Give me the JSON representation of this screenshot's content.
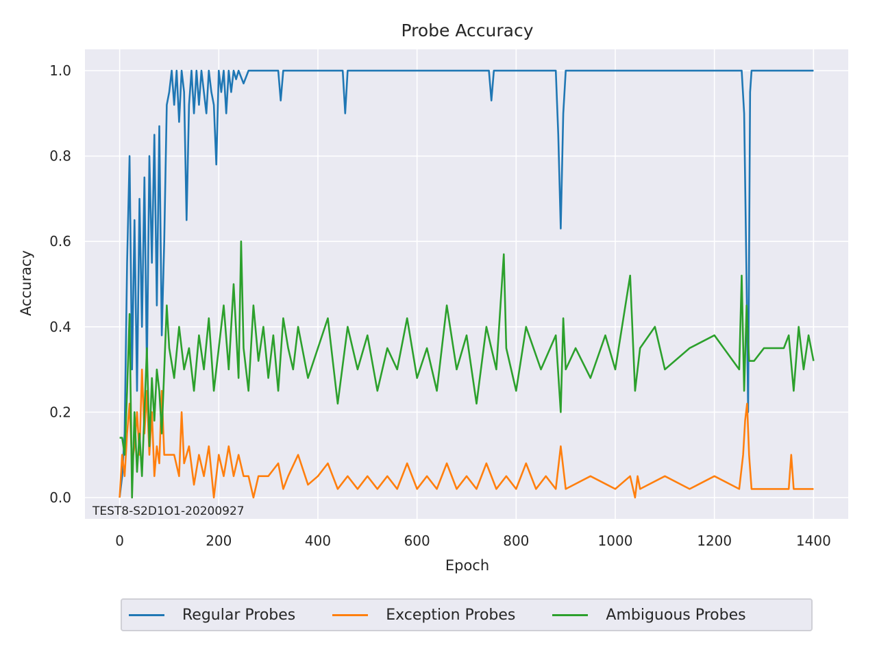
{
  "chart_data": {
    "type": "line",
    "title": "Probe Accuracy",
    "xlabel": "Epoch",
    "ylabel": "Accuracy",
    "annotation": "TEST8-S2D1O1-20200927",
    "xlim": [
      -70,
      1470
    ],
    "ylim": [
      -0.05,
      1.05
    ],
    "xticks": [
      0,
      200,
      400,
      600,
      800,
      1000,
      1200,
      1400
    ],
    "xtick_labels": [
      "0",
      "200",
      "400",
      "600",
      "800",
      "1000",
      "1200",
      "1400"
    ],
    "yticks": [
      0.0,
      0.2,
      0.4,
      0.6,
      0.8,
      1.0
    ],
    "ytick_labels": [
      "0.0",
      "0.2",
      "0.4",
      "0.6",
      "0.8",
      "1.0"
    ],
    "grid": true,
    "legend_position": "bottom-center",
    "series": [
      {
        "name": "Regular Probes",
        "color": "#1f77b4",
        "x": [
          0,
          5,
          10,
          15,
          20,
          25,
          30,
          35,
          40,
          45,
          50,
          55,
          60,
          65,
          70,
          75,
          80,
          85,
          90,
          95,
          100,
          105,
          110,
          115,
          120,
          125,
          130,
          135,
          140,
          145,
          150,
          155,
          160,
          165,
          170,
          175,
          180,
          185,
          190,
          195,
          200,
          205,
          210,
          215,
          220,
          225,
          230,
          235,
          240,
          250,
          260,
          270,
          280,
          300,
          320,
          325,
          330,
          340,
          360,
          400,
          450,
          455,
          460,
          470,
          500,
          600,
          700,
          745,
          750,
          755,
          800,
          880,
          885,
          890,
          895,
          900,
          1000,
          1100,
          1200,
          1255,
          1260,
          1265,
          1268,
          1272,
          1275,
          1280,
          1300,
          1400
        ],
        "y": [
          0,
          0.05,
          0.15,
          0.55,
          0.8,
          0.3,
          0.65,
          0.25,
          0.7,
          0.4,
          0.75,
          0.3,
          0.8,
          0.55,
          0.85,
          0.45,
          0.87,
          0.38,
          0.6,
          0.92,
          0.95,
          1.0,
          0.92,
          1.0,
          0.88,
          1.0,
          0.95,
          0.65,
          0.92,
          1.0,
          0.9,
          1.0,
          0.92,
          1.0,
          0.95,
          0.9,
          1.0,
          0.95,
          0.92,
          0.78,
          1.0,
          0.95,
          1.0,
          0.9,
          1.0,
          0.95,
          1.0,
          0.98,
          1.0,
          0.97,
          1.0,
          1.0,
          1.0,
          1.0,
          1.0,
          0.93,
          1.0,
          1.0,
          1.0,
          1.0,
          1.0,
          0.9,
          1.0,
          1.0,
          1.0,
          1.0,
          1.0,
          1.0,
          0.93,
          1.0,
          1.0,
          1.0,
          0.85,
          0.63,
          0.9,
          1.0,
          1.0,
          1.0,
          1.0,
          1.0,
          0.9,
          0.5,
          0.2,
          0.95,
          1.0,
          1.0,
          1.0,
          1.0
        ]
      },
      {
        "name": "Exception Probes",
        "color": "#ff7f0e",
        "x": [
          0,
          5,
          10,
          15,
          20,
          25,
          30,
          35,
          40,
          45,
          50,
          55,
          60,
          65,
          70,
          75,
          80,
          85,
          90,
          100,
          110,
          120,
          125,
          130,
          140,
          150,
          160,
          170,
          180,
          190,
          200,
          210,
          220,
          230,
          240,
          250,
          260,
          270,
          280,
          300,
          320,
          330,
          340,
          360,
          380,
          400,
          420,
          440,
          460,
          480,
          500,
          520,
          540,
          560,
          580,
          600,
          620,
          640,
          660,
          680,
          700,
          720,
          740,
          760,
          780,
          800,
          820,
          840,
          860,
          880,
          890,
          900,
          950,
          1000,
          1030,
          1040,
          1045,
          1050,
          1100,
          1150,
          1200,
          1250,
          1258,
          1262,
          1266,
          1270,
          1275,
          1300,
          1350,
          1355,
          1360,
          1400
        ],
        "y": [
          0,
          0.1,
          0.05,
          0.15,
          0.22,
          0.08,
          0.12,
          0.2,
          0.1,
          0.3,
          0.15,
          0.25,
          0.1,
          0.2,
          0.05,
          0.12,
          0.08,
          0.25,
          0.1,
          0.1,
          0.1,
          0.05,
          0.2,
          0.08,
          0.12,
          0.03,
          0.1,
          0.05,
          0.12,
          0.0,
          0.1,
          0.05,
          0.12,
          0.05,
          0.1,
          0.05,
          0.05,
          0.0,
          0.05,
          0.05,
          0.08,
          0.02,
          0.05,
          0.1,
          0.03,
          0.05,
          0.08,
          0.02,
          0.05,
          0.02,
          0.05,
          0.02,
          0.05,
          0.02,
          0.08,
          0.02,
          0.05,
          0.02,
          0.08,
          0.02,
          0.05,
          0.02,
          0.08,
          0.02,
          0.05,
          0.02,
          0.08,
          0.02,
          0.05,
          0.02,
          0.12,
          0.02,
          0.05,
          0.02,
          0.05,
          0.0,
          0.05,
          0.02,
          0.05,
          0.02,
          0.05,
          0.02,
          0.1,
          0.18,
          0.22,
          0.1,
          0.02,
          0.02,
          0.02,
          0.1,
          0.02,
          0.02
        ]
      },
      {
        "name": "Ambiguous Probes",
        "color": "#2ca02c",
        "x": [
          0,
          5,
          10,
          15,
          20,
          25,
          30,
          35,
          40,
          45,
          50,
          55,
          60,
          65,
          70,
          75,
          80,
          85,
          90,
          95,
          100,
          110,
          120,
          130,
          140,
          150,
          160,
          170,
          180,
          190,
          200,
          210,
          220,
          230,
          240,
          245,
          250,
          260,
          270,
          280,
          290,
          300,
          310,
          320,
          330,
          340,
          350,
          360,
          380,
          400,
          420,
          440,
          460,
          480,
          500,
          520,
          540,
          560,
          580,
          600,
          620,
          640,
          660,
          680,
          700,
          720,
          740,
          760,
          775,
          780,
          800,
          820,
          850,
          880,
          890,
          895,
          900,
          920,
          950,
          980,
          1000,
          1030,
          1040,
          1050,
          1080,
          1100,
          1150,
          1200,
          1250,
          1255,
          1260,
          1265,
          1270,
          1280,
          1300,
          1340,
          1350,
          1360,
          1370,
          1380,
          1390,
          1400
        ],
        "y": [
          0.14,
          0.14,
          0.1,
          0.25,
          0.43,
          0.0,
          0.2,
          0.06,
          0.15,
          0.05,
          0.2,
          0.35,
          0.12,
          0.28,
          0.18,
          0.3,
          0.25,
          0.15,
          0.3,
          0.45,
          0.35,
          0.28,
          0.4,
          0.3,
          0.35,
          0.25,
          0.38,
          0.3,
          0.42,
          0.25,
          0.35,
          0.45,
          0.3,
          0.5,
          0.28,
          0.6,
          0.35,
          0.25,
          0.45,
          0.32,
          0.4,
          0.28,
          0.38,
          0.25,
          0.42,
          0.35,
          0.3,
          0.4,
          0.28,
          0.35,
          0.42,
          0.22,
          0.4,
          0.3,
          0.38,
          0.25,
          0.35,
          0.3,
          0.42,
          0.28,
          0.35,
          0.25,
          0.45,
          0.3,
          0.38,
          0.22,
          0.4,
          0.3,
          0.57,
          0.35,
          0.25,
          0.4,
          0.3,
          0.38,
          0.2,
          0.42,
          0.3,
          0.35,
          0.28,
          0.38,
          0.3,
          0.52,
          0.25,
          0.35,
          0.4,
          0.3,
          0.35,
          0.38,
          0.3,
          0.52,
          0.25,
          0.45,
          0.32,
          0.32,
          0.35,
          0.35,
          0.38,
          0.25,
          0.4,
          0.3,
          0.38,
          0.32
        ]
      }
    ]
  }
}
